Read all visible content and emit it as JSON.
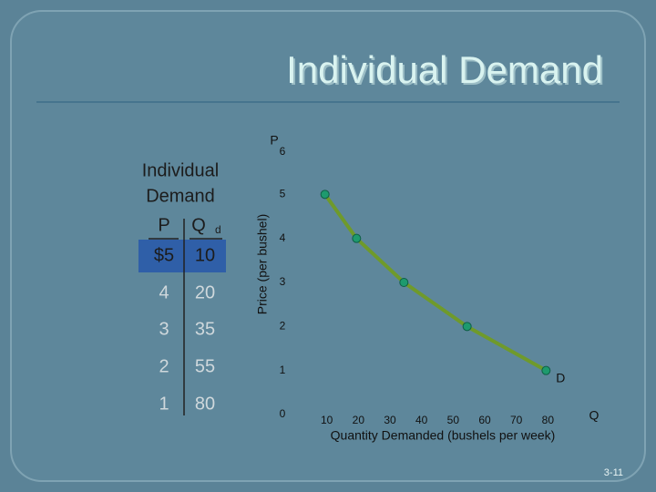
{
  "title": "Individual Demand",
  "table": {
    "title": [
      "Individual",
      "Demand"
    ],
    "header": [
      "P",
      "Q"
    ],
    "header_subscript": "d",
    "rows": [
      [
        "$5",
        10
      ],
      [
        4,
        20
      ],
      [
        3,
        35
      ],
      [
        2,
        55
      ],
      [
        1,
        80
      ]
    ]
  },
  "chart_data": {
    "type": "line",
    "x": [
      10,
      20,
      35,
      55,
      80
    ],
    "series": [
      {
        "name": "D",
        "color": "#6f9a2b",
        "marker_color": "#1e9a6e",
        "values": [
          5,
          4,
          3,
          2,
          1
        ]
      }
    ],
    "xlim": [
      0,
      90
    ],
    "ylim": [
      0,
      6
    ],
    "xticks": [
      10,
      20,
      30,
      40,
      50,
      60,
      70,
      80
    ],
    "yticks": [
      0,
      1,
      2,
      3,
      4,
      5,
      6
    ],
    "ylabel": "Price (per bushel)",
    "xlabel": "Quantity Demanded (bushels per week)",
    "y_symbol": "P",
    "x_symbol": "Q",
    "grid": false
  },
  "footer": "3-11"
}
